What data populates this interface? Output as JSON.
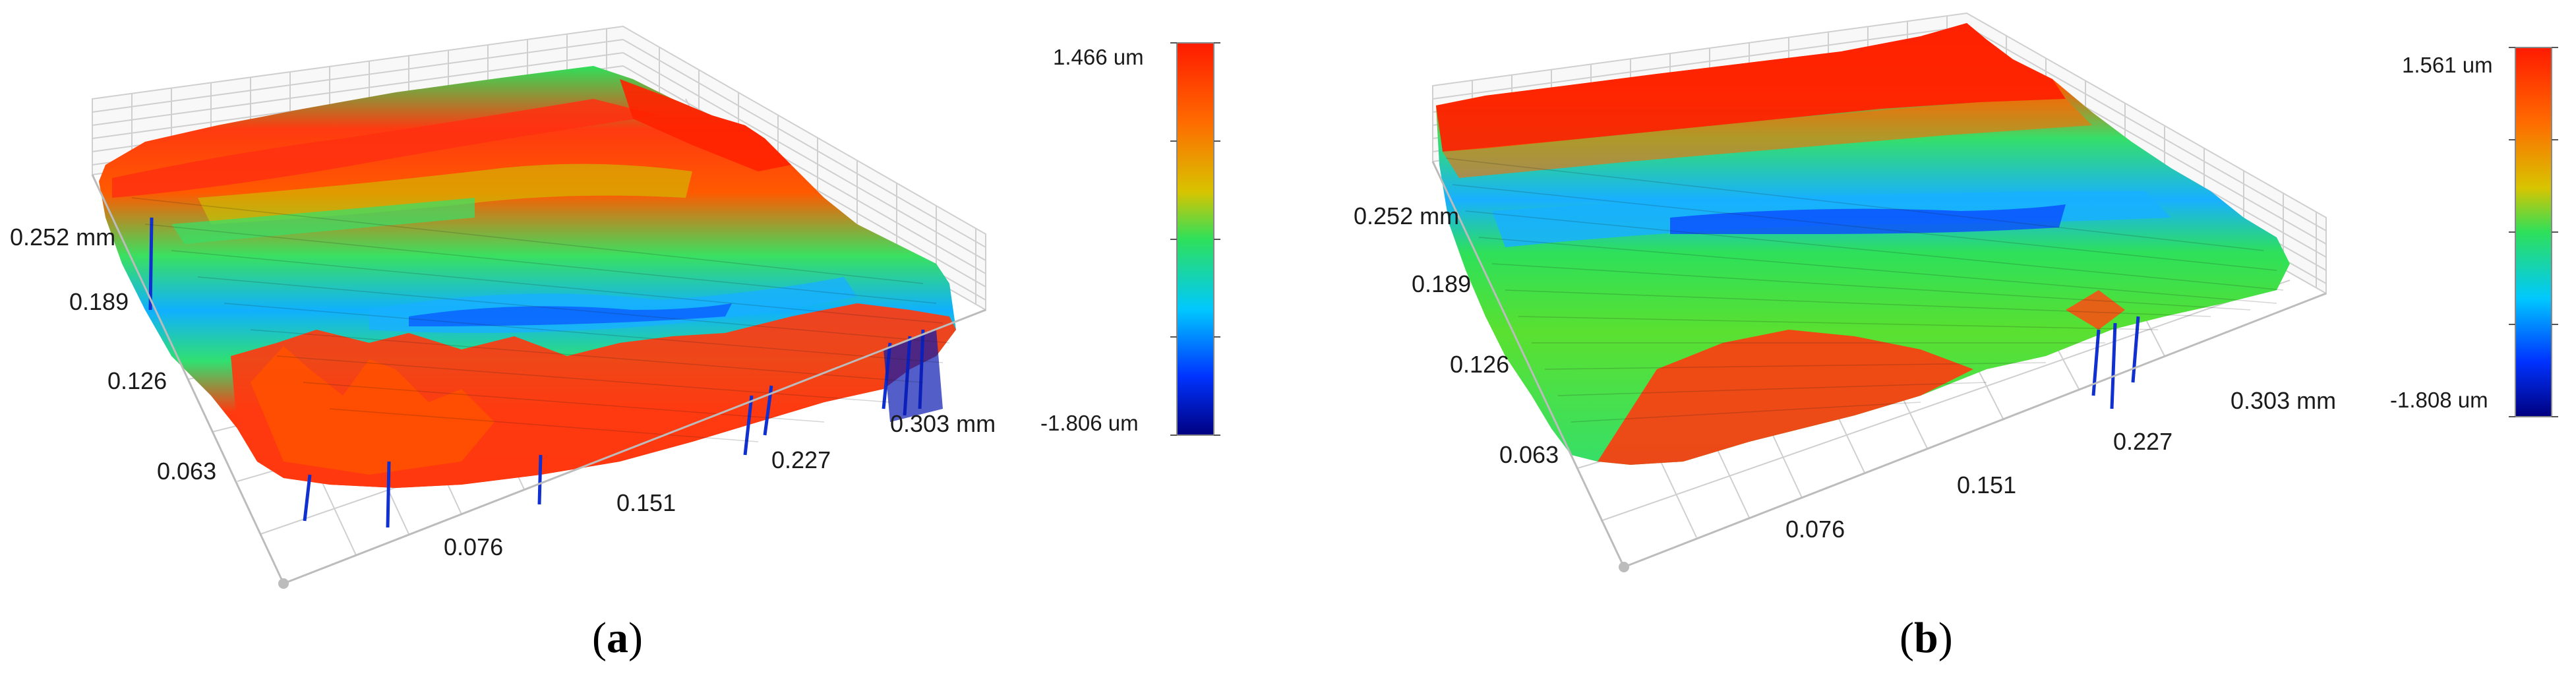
{
  "chart_data": [
    {
      "type": "surface3d",
      "panel_label": "a",
      "x_axis": {
        "ticks": [
          "0.076",
          "0.151",
          "0.227",
          "0.303 mm"
        ],
        "range": [
          0,
          0.303
        ],
        "unit": "mm"
      },
      "y_axis": {
        "ticks": [
          "0.063",
          "0.126",
          "0.189",
          "0.252 mm"
        ],
        "range": [
          0,
          0.252
        ],
        "unit": "mm"
      },
      "colorbar": {
        "max_label": "1.466 um",
        "min_label": "-1.806 um",
        "max": 1.466,
        "min": -1.806,
        "unit": "um",
        "colors": [
          "#ff1a00",
          "#ff6a00",
          "#d8c400",
          "#2ee05a",
          "#00c8ff",
          "#0033ff",
          "#000080"
        ]
      },
      "grid": true
    },
    {
      "type": "surface3d",
      "panel_label": "b",
      "x_axis": {
        "ticks": [
          "0.076",
          "0.151",
          "0.227",
          "0.303 mm"
        ],
        "range": [
          0,
          0.303
        ],
        "unit": "mm"
      },
      "y_axis": {
        "ticks": [
          "0.063",
          "0.126",
          "0.189",
          "0.252 mm"
        ],
        "range": [
          0,
          0.252
        ],
        "unit": "mm"
      },
      "colorbar": {
        "max_label": "1.561 um",
        "min_label": "-1.808 um",
        "max": 1.561,
        "min": -1.808,
        "unit": "um",
        "colors": [
          "#ff1a00",
          "#ff6a00",
          "#d8c400",
          "#2ee05a",
          "#00c8ff",
          "#0033ff",
          "#000080"
        ]
      },
      "grid": true
    }
  ],
  "captions": {
    "a": "a",
    "b": "b"
  }
}
